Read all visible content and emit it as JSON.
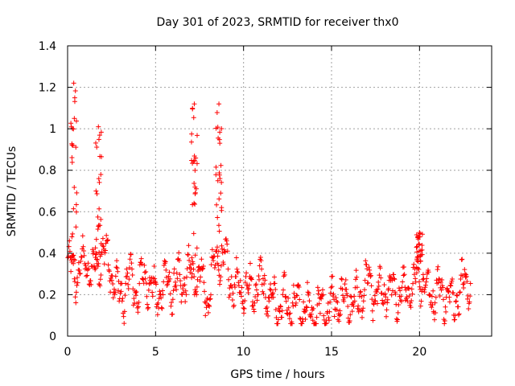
{
  "chart_data": {
    "type": "scatter",
    "title": "Day 301 of 2023, SRMTID for receiver thx0",
    "xlabel": "GPS time / hours",
    "ylabel": "SRMTID / TECUs",
    "xlim": [
      0,
      24.1
    ],
    "ylim": [
      0,
      1.4
    ],
    "xticks": [
      0,
      5,
      10,
      15,
      20
    ],
    "yticks": [
      0,
      0.2,
      0.4,
      0.6,
      0.8,
      1,
      1.2,
      1.4
    ],
    "xtick_labels": [
      "0",
      "5",
      "10",
      "15",
      "20"
    ],
    "ytick_labels": [
      "0",
      "0.2",
      "0.4",
      "0.6",
      "0.8",
      "1",
      "1.2",
      "1.4"
    ],
    "grid": true,
    "marker": "+",
    "color": "#ff0000",
    "series": [
      {
        "name": "SRMTID thx0",
        "profile_note": "dense point cloud; values sampled along hours",
        "spikes": [
          {
            "x": 0.35,
            "peak": 1.22
          },
          {
            "x": 1.75,
            "peak": 1.01
          },
          {
            "x": 7.2,
            "peak": 1.12
          },
          {
            "x": 8.6,
            "peak": 1.12
          },
          {
            "x": 20.0,
            "peak": 0.5
          }
        ],
        "baseline": [
          [
            0.0,
            0.33
          ],
          [
            0.5,
            0.3
          ],
          [
            1.0,
            0.36
          ],
          [
            1.5,
            0.3
          ],
          [
            2.0,
            0.42
          ],
          [
            2.5,
            0.3
          ],
          [
            3.0,
            0.18
          ],
          [
            3.5,
            0.28
          ],
          [
            4.0,
            0.22
          ],
          [
            4.5,
            0.3
          ],
          [
            5.0,
            0.18
          ],
          [
            5.5,
            0.26
          ],
          [
            6.0,
            0.24
          ],
          [
            6.5,
            0.26
          ],
          [
            7.0,
            0.3
          ],
          [
            7.5,
            0.3
          ],
          [
            8.0,
            0.18
          ],
          [
            8.5,
            0.4
          ],
          [
            9.0,
            0.35
          ],
          [
            9.5,
            0.22
          ],
          [
            10.0,
            0.24
          ],
          [
            10.5,
            0.22
          ],
          [
            11.0,
            0.28
          ],
          [
            11.5,
            0.18
          ],
          [
            12.0,
            0.14
          ],
          [
            12.5,
            0.15
          ],
          [
            13.0,
            0.15
          ],
          [
            13.5,
            0.13
          ],
          [
            14.0,
            0.12
          ],
          [
            14.5,
            0.13
          ],
          [
            15.0,
            0.15
          ],
          [
            15.5,
            0.17
          ],
          [
            16.0,
            0.18
          ],
          [
            16.5,
            0.15
          ],
          [
            17.0,
            0.26
          ],
          [
            17.5,
            0.2
          ],
          [
            18.0,
            0.22
          ],
          [
            18.5,
            0.21
          ],
          [
            19.0,
            0.2
          ],
          [
            19.5,
            0.22
          ],
          [
            20.0,
            0.32
          ],
          [
            20.5,
            0.2
          ],
          [
            21.0,
            0.22
          ],
          [
            21.5,
            0.2
          ],
          [
            22.0,
            0.18
          ],
          [
            22.5,
            0.26
          ],
          [
            22.9,
            0.26
          ]
        ]
      }
    ]
  }
}
